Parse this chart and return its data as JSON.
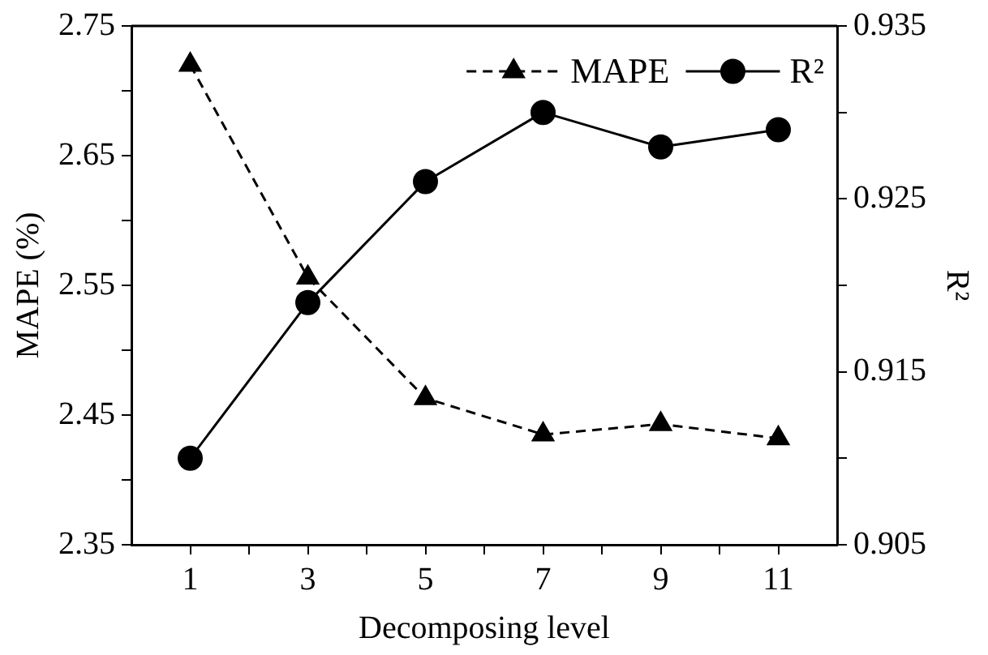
{
  "chart_data": {
    "type": "line",
    "xlabel": "Decomposing level",
    "ylabel": "MAPE (%)",
    "y2label": "R²",
    "x": [
      1,
      3,
      5,
      7,
      9,
      11
    ],
    "xlim": [
      0,
      12
    ],
    "xticks": [
      1,
      {
        "value": 2,
        "label": null
      },
      3,
      {
        "value": 4,
        "label": null
      },
      5,
      {
        "value": 6,
        "label": null
      },
      7,
      {
        "value": 8,
        "label": null
      },
      9,
      {
        "value": 10,
        "label": null
      },
      11
    ],
    "ylim": [
      2.35,
      2.75
    ],
    "yticks": [
      2.35,
      {
        "value": 2.4,
        "label": null
      },
      2.45,
      {
        "value": 2.5,
        "label": null
      },
      2.55,
      {
        "value": 2.6,
        "label": null
      },
      2.65,
      {
        "value": 2.7,
        "label": null
      },
      2.75
    ],
    "y2lim": [
      0.905,
      0.935
    ],
    "y2ticks": [
      0.905,
      {
        "value": 0.91,
        "label": null
      },
      0.915,
      {
        "value": 0.92,
        "label": null
      },
      0.925,
      {
        "value": 0.93,
        "label": null
      },
      0.935
    ],
    "grid": false,
    "legend": "top right",
    "series": [
      {
        "name": "MAPE",
        "color": "#000000",
        "marker": "triangle",
        "line_style": "dashed",
        "values": [
          2.72,
          2.556,
          2.463,
          2.435,
          2.443,
          2.432
        ]
      },
      {
        "name": "R²",
        "color": "#000000",
        "marker": "circle",
        "line_style": "solid",
        "axis": "y2",
        "values": [
          0.91,
          0.919,
          0.926,
          0.93,
          0.928,
          0.929
        ]
      }
    ]
  }
}
